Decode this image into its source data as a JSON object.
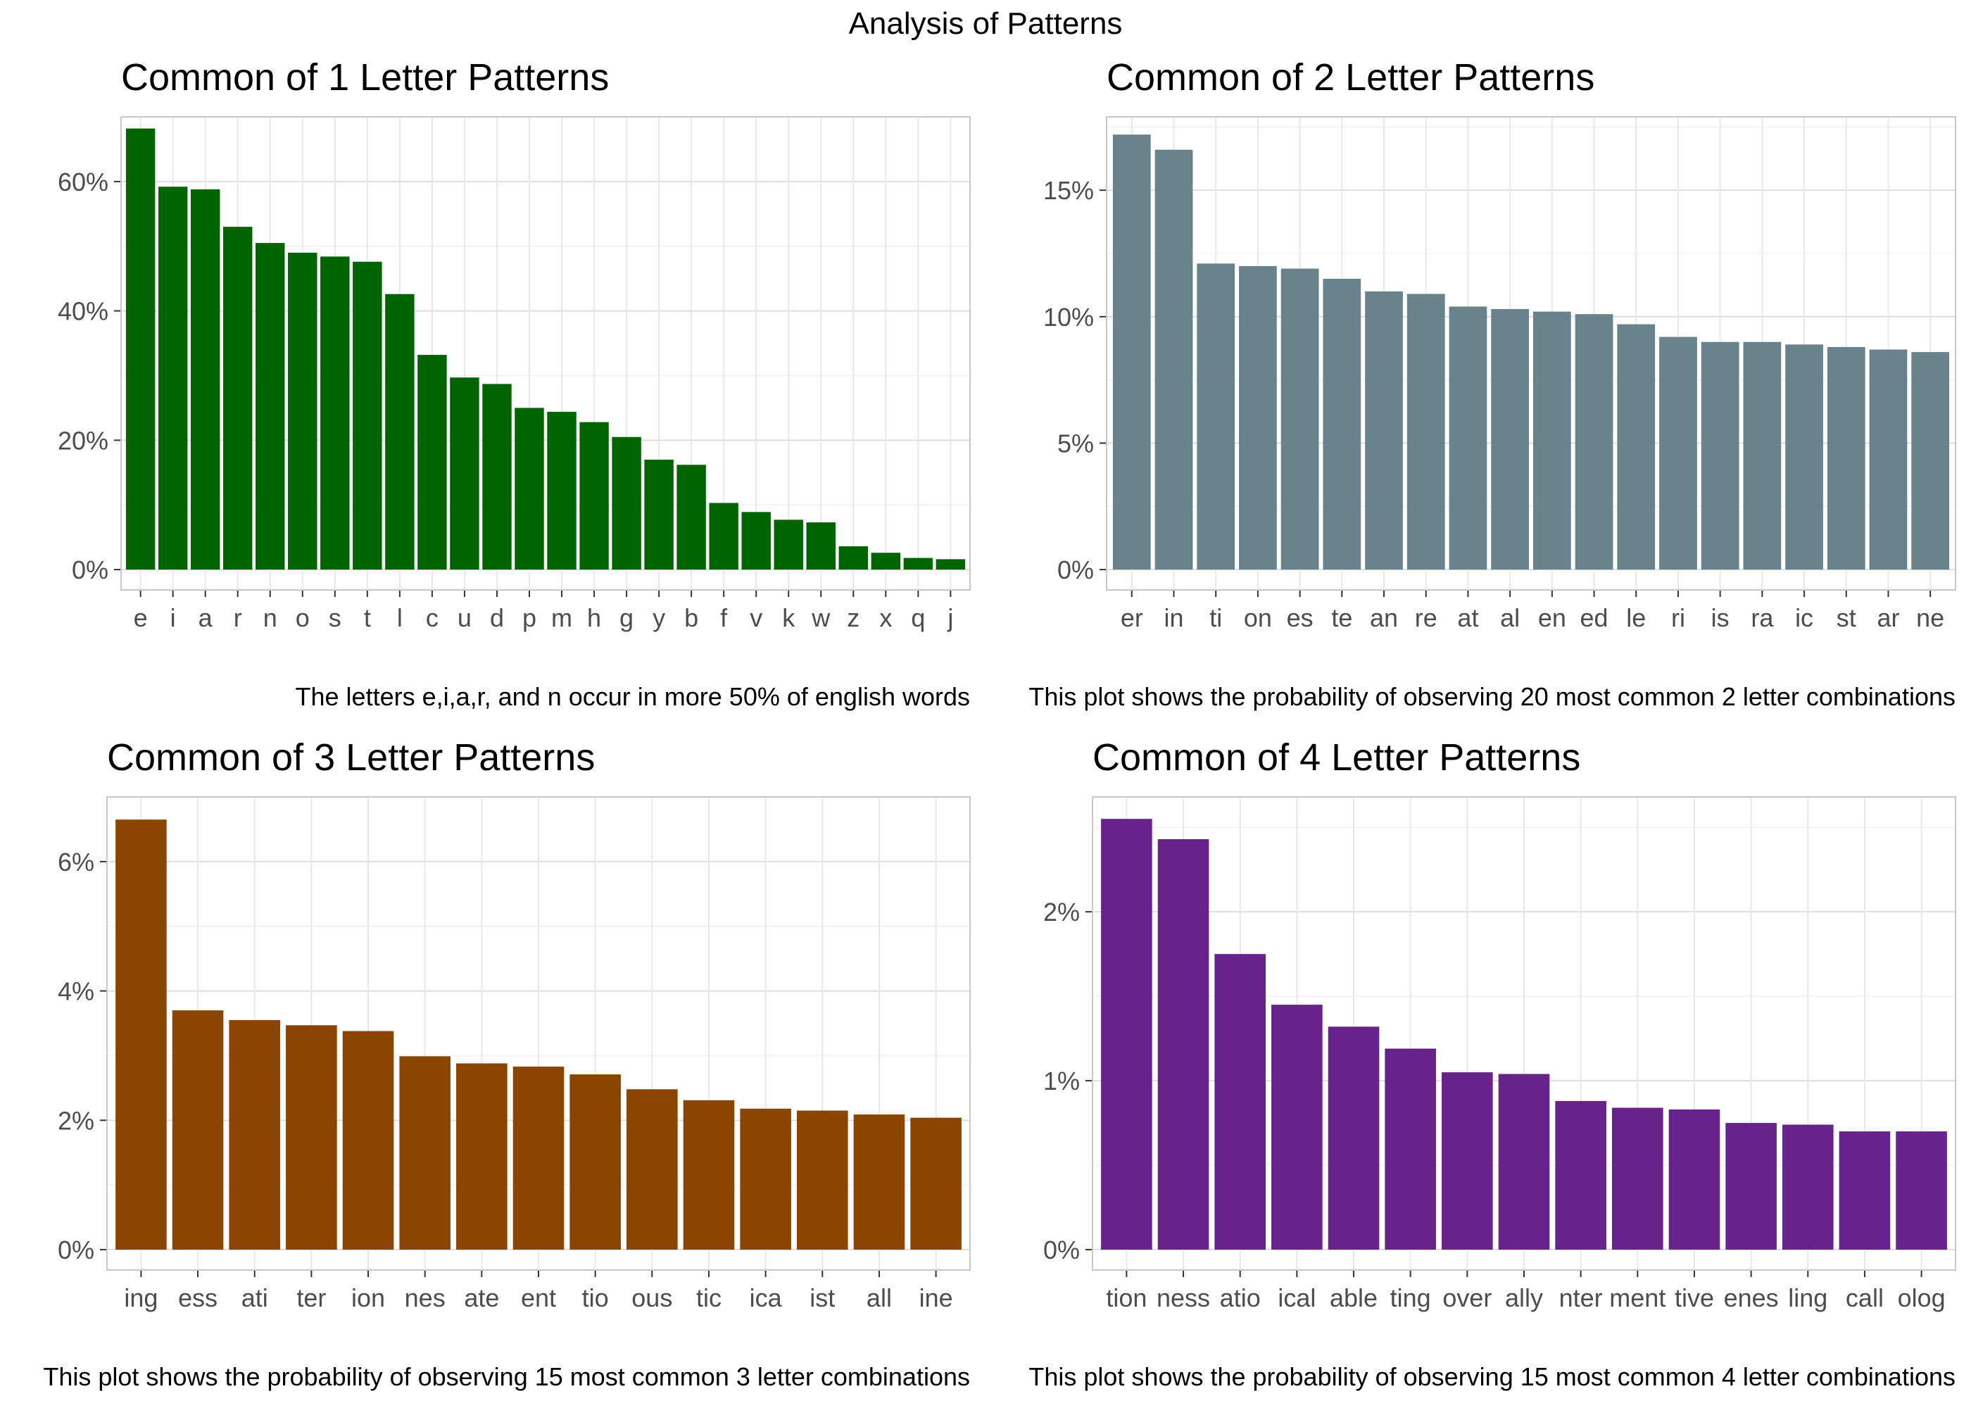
{
  "figure": {
    "title": "Analysis of Patterns"
  },
  "chart_data": [
    {
      "type": "bar",
      "title": "Common of 1 Letter Patterns",
      "caption": "The letters e,i,a,r, and n occur in more 50% of english words",
      "xlabel": "",
      "ylabel": "",
      "bar_color": "#006400",
      "ylim": [
        0,
        70
      ],
      "yticks": [
        0,
        20,
        40,
        60
      ],
      "ytick_labels": [
        "0%",
        "20%",
        "40%",
        "60%"
      ],
      "grid": true,
      "categories": [
        "e",
        "i",
        "a",
        "r",
        "n",
        "o",
        "s",
        "t",
        "l",
        "c",
        "u",
        "d",
        "p",
        "m",
        "h",
        "g",
        "y",
        "b",
        "f",
        "v",
        "k",
        "w",
        "z",
        "x",
        "q",
        "j"
      ],
      "values": [
        68.2,
        59.2,
        58.8,
        53.0,
        50.5,
        49.0,
        48.4,
        47.6,
        42.6,
        33.2,
        29.7,
        28.7,
        25.0,
        24.4,
        22.8,
        20.5,
        17.0,
        16.2,
        10.3,
        8.9,
        7.7,
        7.3,
        3.6,
        2.6,
        1.8,
        1.6
      ]
    },
    {
      "type": "bar",
      "title": "Common of 2 Letter Patterns",
      "caption": "This plot shows the probability of observing 20 most common 2 letter combinations",
      "xlabel": "",
      "ylabel": "",
      "bar_color": "#68838B",
      "ylim": [
        0,
        17.9
      ],
      "yticks": [
        0,
        5,
        10,
        15
      ],
      "ytick_labels": [
        "0%",
        "5%",
        "10%",
        "15%"
      ],
      "grid": true,
      "categories": [
        "er",
        "in",
        "ti",
        "on",
        "es",
        "te",
        "an",
        "re",
        "at",
        "al",
        "en",
        "ed",
        "le",
        "ri",
        "is",
        "ra",
        "ic",
        "st",
        "ar",
        "ne"
      ],
      "values": [
        17.2,
        16.6,
        12.1,
        12.0,
        11.9,
        11.5,
        11.0,
        10.9,
        10.4,
        10.3,
        10.2,
        10.1,
        9.7,
        9.2,
        9.0,
        9.0,
        8.9,
        8.8,
        8.7,
        8.6
      ]
    },
    {
      "type": "bar",
      "title": "Common of 3 Letter Patterns",
      "caption": "This plot shows the probability of observing 15 most common 3 letter combinations",
      "xlabel": "",
      "ylabel": "",
      "bar_color": "#8B4500",
      "ylim": [
        0,
        7.0
      ],
      "yticks": [
        0,
        2,
        4,
        6
      ],
      "ytick_labels": [
        "0%",
        "2%",
        "4%",
        "6%"
      ],
      "grid": true,
      "categories": [
        "ing",
        "ess",
        "ati",
        "ter",
        "ion",
        "nes",
        "ate",
        "ent",
        "tio",
        "ous",
        "tic",
        "ica",
        "ist",
        "all",
        "ine"
      ],
      "values": [
        6.65,
        3.7,
        3.55,
        3.47,
        3.38,
        2.99,
        2.88,
        2.83,
        2.71,
        2.48,
        2.31,
        2.18,
        2.15,
        2.09,
        2.04
      ]
    },
    {
      "type": "bar",
      "title": "Common of 4 Letter Patterns",
      "caption": "This plot shows the probability of observing 15 most common 4 letter combinations",
      "xlabel": "",
      "ylabel": "",
      "bar_color": "#68228B",
      "ylim": [
        0,
        2.68
      ],
      "yticks": [
        0,
        1,
        2
      ],
      "ytick_labels": [
        "0%",
        "1%",
        "2%"
      ],
      "grid": true,
      "categories": [
        "tion",
        "ness",
        "atio",
        "ical",
        "able",
        "ting",
        "over",
        "ally",
        "nter",
        "ment",
        "tive",
        "enes",
        "ling",
        "call",
        "olog"
      ],
      "values": [
        2.55,
        2.43,
        1.75,
        1.45,
        1.32,
        1.19,
        1.05,
        1.04,
        0.88,
        0.84,
        0.83,
        0.75,
        0.74,
        0.7,
        0.7
      ]
    }
  ]
}
